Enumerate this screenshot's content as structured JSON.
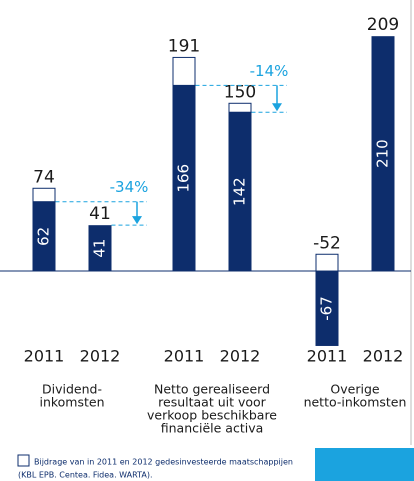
{
  "chart_data": {
    "type": "bar",
    "groups": [
      {
        "label": [
          "Dividend-",
          "inkomsten"
        ],
        "years": [
          "2011",
          "2012"
        ],
        "totals": [
          74,
          41
        ],
        "values": [
          62,
          41
        ],
        "change": "-34%"
      },
      {
        "label": [
          "Netto gerealiseerd",
          "resultaat uit voor",
          "verkoop beschikbare",
          "financiële activa"
        ],
        "years": [
          "2011",
          "2012"
        ],
        "totals": [
          191,
          150
        ],
        "values": [
          166,
          142
        ],
        "change": "-14%"
      },
      {
        "label": [
          "Overige",
          "netto-inkomsten"
        ],
        "years": [
          "2011",
          "2012"
        ],
        "totals": [
          -52,
          209
        ],
        "values": [
          -67,
          210
        ]
      }
    ],
    "color": "#0d2d6c",
    "accent": "#1ba3df",
    "ylim": [
      -80,
      220
    ],
    "legend": [
      "Bijdrage van in 2011 en 2012 gedesinvesteerde maatschappijen",
      "(KBL EPB. Centea. Fidea. WARTA)."
    ]
  }
}
